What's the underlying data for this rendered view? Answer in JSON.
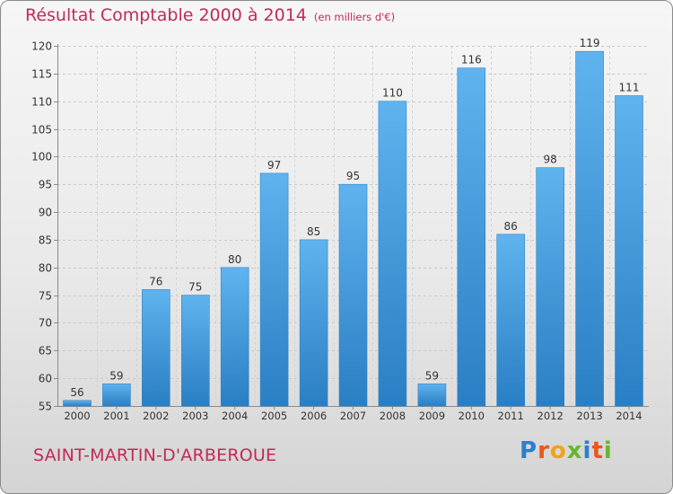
{
  "title": "Résultat Comptable 2000 à 2014",
  "unit": "(en milliers d'€)",
  "location": "SAINT-MARTIN-D'ARBEROUE",
  "logo": {
    "text": "Proxiti",
    "letter_colors": [
      "#2a7fd0",
      "#e9561f",
      "#f1a21a",
      "#69b62e",
      "#2a7fd0",
      "#e9561f",
      "#69b62e"
    ]
  },
  "colors": {
    "title": "#c12b56",
    "bar_light": "#5fb3ee",
    "bar_dark": "#2a7ec3"
  },
  "chart_data": {
    "type": "bar",
    "title": "Résultat Comptable 2000 à 2014",
    "unit": "(en milliers d'€)",
    "categories": [
      "2000",
      "2001",
      "2002",
      "2003",
      "2004",
      "2005",
      "2006",
      "2007",
      "2008",
      "2009",
      "2010",
      "2011",
      "2012",
      "2013",
      "2014"
    ],
    "values": [
      56,
      59,
      76,
      75,
      80,
      97,
      85,
      95,
      110,
      59,
      116,
      86,
      98,
      119,
      111
    ],
    "ylim": [
      55,
      120
    ],
    "yticks": [
      55,
      60,
      65,
      70,
      75,
      80,
      85,
      90,
      95,
      100,
      105,
      110,
      115,
      120
    ],
    "grid": true,
    "data_labels": true
  }
}
